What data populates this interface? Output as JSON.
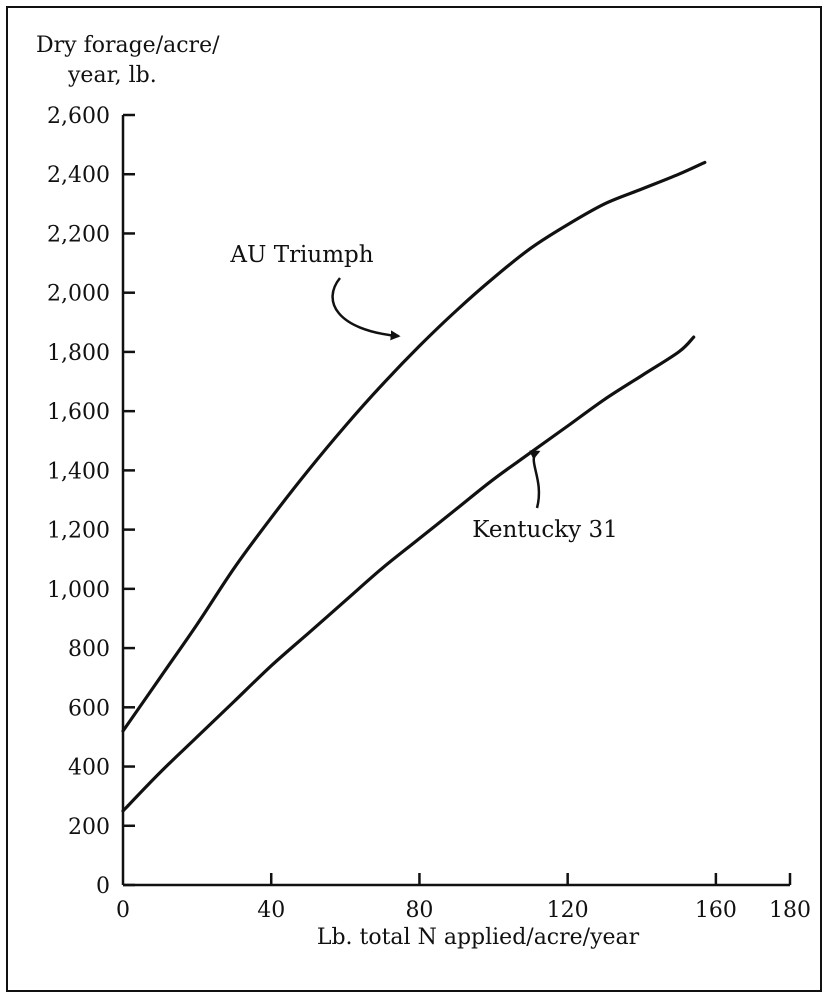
{
  "chart_data": {
    "type": "line",
    "ylabel_line1": "Dry forage/acre/",
    "ylabel_line2": "year, lb.",
    "xlabel": "Lb. total N applied/acre/year",
    "xlim": [
      0,
      180
    ],
    "ylim": [
      0,
      2600
    ],
    "x_ticks": [
      "0",
      "40",
      "80",
      "120",
      "160",
      "180"
    ],
    "x_tick_values": [
      0,
      40,
      80,
      120,
      160,
      180
    ],
    "y_ticks": [
      "0",
      "200",
      "400",
      "600",
      "800",
      "1,000",
      "1,200",
      "1,400",
      "1,600",
      "1,800",
      "2,000",
      "2,200",
      "2,400",
      "2,600"
    ],
    "y_tick_values": [
      0,
      200,
      400,
      600,
      800,
      1000,
      1200,
      1400,
      1600,
      1800,
      2000,
      2200,
      2400,
      2600
    ],
    "grid": false,
    "series": [
      {
        "name": "AU Triumph",
        "x": [
          0,
          10,
          20,
          30,
          40,
          50,
          60,
          70,
          80,
          90,
          100,
          110,
          120,
          130,
          140,
          150,
          157
        ],
        "values": [
          520,
          700,
          880,
          1070,
          1240,
          1400,
          1550,
          1690,
          1820,
          1940,
          2050,
          2150,
          2230,
          2300,
          2350,
          2400,
          2440
        ]
      },
      {
        "name": "Kentucky 31",
        "x": [
          0,
          10,
          20,
          30,
          40,
          50,
          60,
          70,
          80,
          90,
          100,
          110,
          120,
          130,
          140,
          150,
          154
        ],
        "values": [
          250,
          380,
          500,
          620,
          740,
          850,
          960,
          1070,
          1170,
          1270,
          1370,
          1460,
          1550,
          1640,
          1720,
          1800,
          1850
        ]
      }
    ],
    "annotations": [
      {
        "text": "AU Triumph",
        "series": 0,
        "x": 76,
        "y": 1840
      },
      {
        "text": "Kentucky 31",
        "series": 1,
        "x": 110,
        "y": 1470
      }
    ],
    "colors": {
      "line": "#111111",
      "axis": "#111111",
      "background": "#ffffff"
    }
  }
}
